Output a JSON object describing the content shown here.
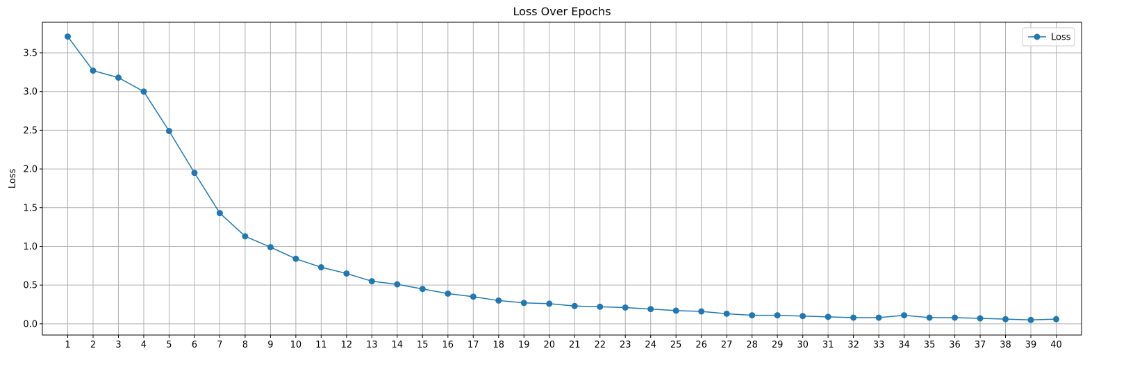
{
  "chart_data": {
    "type": "line",
    "title": "Loss Over Epochs",
    "xlabel": "",
    "ylabel": "Loss",
    "x": [
      1,
      2,
      3,
      4,
      5,
      6,
      7,
      8,
      9,
      10,
      11,
      12,
      13,
      14,
      15,
      16,
      17,
      18,
      19,
      20,
      21,
      22,
      23,
      24,
      25,
      26,
      27,
      28,
      29,
      30,
      31,
      32,
      33,
      34,
      35,
      36,
      37,
      38,
      39,
      40
    ],
    "series": [
      {
        "name": "Loss",
        "color": "#1f77b4",
        "marker": "circle",
        "values": [
          3.71,
          3.27,
          3.18,
          3.0,
          2.49,
          1.95,
          1.43,
          1.13,
          0.99,
          0.84,
          0.73,
          0.65,
          0.55,
          0.51,
          0.45,
          0.39,
          0.35,
          0.3,
          0.27,
          0.26,
          0.23,
          0.22,
          0.21,
          0.19,
          0.17,
          0.16,
          0.13,
          0.11,
          0.11,
          0.1,
          0.09,
          0.08,
          0.08,
          0.11,
          0.08,
          0.08,
          0.07,
          0.06,
          0.05,
          0.06
        ]
      }
    ],
    "xlim": [
      0,
      41
    ],
    "ylim": [
      -0.145,
      3.895
    ],
    "yticks": [
      0.0,
      0.5,
      1.0,
      1.5,
      2.0,
      2.5,
      3.0,
      3.5
    ],
    "ytick_labels": [
      "0.0",
      "0.5",
      "1.0",
      "1.5",
      "2.0",
      "2.5",
      "3.0",
      "3.5"
    ],
    "xtick_labels": [
      "1",
      "2",
      "3",
      "4",
      "5",
      "6",
      "7",
      "8",
      "9",
      "10",
      "11",
      "12",
      "13",
      "14",
      "15",
      "16",
      "17",
      "18",
      "19",
      "20",
      "21",
      "22",
      "23",
      "24",
      "25",
      "26",
      "27",
      "28",
      "29",
      "30",
      "31",
      "32",
      "33",
      "34",
      "35",
      "36",
      "37",
      "38",
      "39",
      "40"
    ],
    "grid": true,
    "legend_position": "top-right"
  }
}
